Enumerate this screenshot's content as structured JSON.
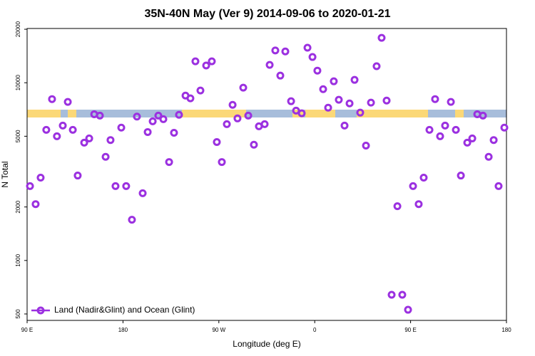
{
  "chart_data": {
    "type": "scatter",
    "title": "35N-40N May (Ver 9)   2014-09-06 to 2020-01-21",
    "xlabel": "Longitude (deg E)",
    "ylabel": "N Total",
    "log_y": true,
    "legend": "bottom-left",
    "xlim": [
      90,
      540
    ],
    "xticks": [
      {
        "value": 90,
        "label": "90 E"
      },
      {
        "value": 180,
        "label": "180"
      },
      {
        "value": 270,
        "label": "90 W"
      },
      {
        "value": 360,
        "label": "0"
      },
      {
        "value": 450,
        "label": "90 E"
      },
      {
        "value": 540,
        "label": "180"
      }
    ],
    "ylim": [
      460,
      20200
    ],
    "yticks": [
      500,
      1000,
      2000,
      5000,
      10000,
      20000
    ],
    "series": [
      {
        "name": "Land (Nadir&Glint) and Ocean (Glint)",
        "color": "#9b30e0",
        "x": [
          92.7,
          98,
          102.7,
          108,
          113.4,
          118,
          123.5,
          128.2,
          132.9,
          137.5,
          143.6,
          148.3,
          153,
          158.3,
          163.7,
          168.3,
          173,
          178.4,
          183,
          188.4,
          193.1,
          198.5,
          203.2,
          207.9,
          213.2,
          217.9,
          223.3,
          227.9,
          232.6,
          238.7,
          243.3,
          248,
          252.7,
          258.1,
          263.4,
          268.1,
          272.8,
          277.5,
          282.9,
          287.5,
          292.9,
          297.6,
          302.9,
          307.6,
          313,
          317.7,
          323,
          327.7,
          332.4,
          337.8,
          342.5,
          347.8,
          353.2,
          357.9,
          362.5,
          367.9,
          372.6,
          377.9,
          382.6,
          388,
          392.7,
          397.4,
          402.7,
          408.1,
          412.8,
          418.1,
          422.8,
          427.5,
          432.2,
          437.6,
          442.2,
          447.6,
          452.3,
          457.6,
          462.3,
          467.7,
          473,
          477.7,
          482.4,
          487.8,
          492.5,
          497.2,
          503.2,
          507.9,
          512.6,
          517.9,
          523.3,
          528,
          532.6,
          538
        ],
        "values": [
          2620,
          2075,
          2925,
          5430,
          8090,
          5000,
          5740,
          7800,
          5430,
          3005,
          4600,
          4860,
          6650,
          6530,
          3830,
          4760,
          2620,
          5590,
          2620,
          1695,
          6450,
          2390,
          5280,
          6070,
          6530,
          6240,
          3580,
          5230,
          6600,
          8470,
          8170,
          13200,
          9040,
          12500,
          13200,
          4640,
          3580,
          5850,
          7510,
          6300,
          9380,
          6530,
          4480,
          5690,
          5850,
          12600,
          15200,
          10970,
          15000,
          7870,
          6970,
          6730,
          15740,
          13960,
          11700,
          9200,
          7240,
          10190,
          8020,
          5740,
          7650,
          10380,
          6790,
          4430,
          7730,
          12390,
          17900,
          7940,
          641,
          2020,
          641,
          528,
          2620,
          2075,
          2925,
          5430,
          8090,
          5000,
          5740,
          7800,
          5430,
          3005,
          4600,
          4860,
          6650,
          6530,
          3830,
          4760,
          2620,
          5590
        ]
      }
    ]
  }
}
